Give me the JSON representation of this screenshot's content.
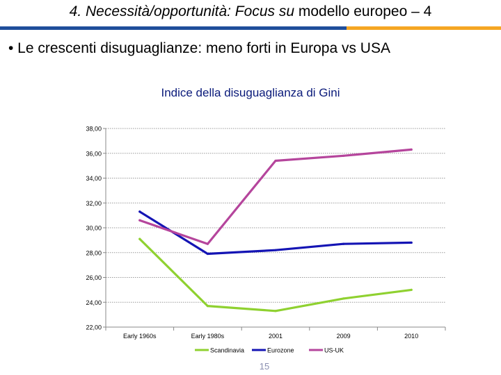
{
  "slide": {
    "title_italic": "4. Necessità/opportunità: Focus su",
    "title_rest": " modello europeo – 4",
    "bullet": "• Le crescenti disuguaglianze: meno forti in Europa vs USA",
    "page_number": "15",
    "accent_blue": "#1f4e9b",
    "accent_orange": "#f5a623"
  },
  "chart_data": {
    "type": "line",
    "title": "Indice della disuguaglianza di Gini",
    "categories": [
      "Early 1960s",
      "Early 1980s",
      "2001",
      "2009",
      "2010"
    ],
    "ylim": [
      22,
      38
    ],
    "yticks": [
      "22,00",
      "24,00",
      "26,00",
      "28,00",
      "30,00",
      "32,00",
      "34,00",
      "36,00",
      "38,00"
    ],
    "grid": true,
    "legend_position": "bottom",
    "series": [
      {
        "name": "Scandinavia",
        "color": "#8fd130",
        "values": [
          29.1,
          23.7,
          23.3,
          24.3,
          25.0
        ]
      },
      {
        "name": "Eurozone",
        "color": "#1414b4",
        "values": [
          31.3,
          27.9,
          28.2,
          28.7,
          28.8
        ]
      },
      {
        "name": "US-UK",
        "color": "#b5459c",
        "values": [
          30.6,
          28.7,
          35.4,
          35.8,
          36.3
        ]
      }
    ]
  }
}
